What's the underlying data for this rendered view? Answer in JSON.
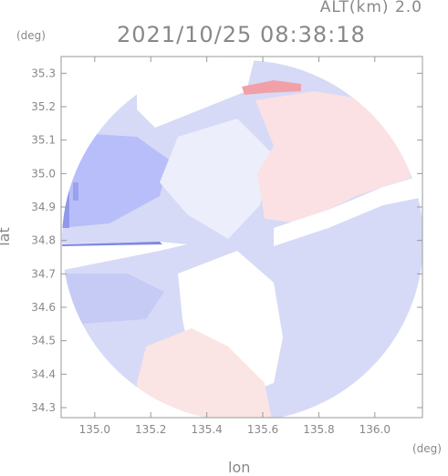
{
  "header": {
    "altitude": "ALT(km) 2.0",
    "datetime": "2021/10/25 08:38:18"
  },
  "axes": {
    "x_title": "lon",
    "y_title": "lat",
    "x_unit": "(deg)",
    "y_unit": "(deg)",
    "x_ticks": [
      "135.0",
      "135.2",
      "135.4",
      "135.6",
      "135.8",
      "136.0"
    ],
    "y_ticks": [
      "35.3",
      "35.2",
      "35.1",
      "35.0",
      "34.9",
      "34.8",
      "34.7",
      "34.6",
      "34.5",
      "34.4",
      "34.3"
    ]
  },
  "map_data": {
    "type": "radar-doppler-velocity",
    "xlim": [
      134.88,
      136.17
    ],
    "ylim": [
      34.27,
      35.35
    ],
    "colors": {
      "approaching": "#d4d8f6",
      "approaching_strong": "#a8b0ee",
      "receding": "#fbe0e0",
      "neutral": "#ffffff",
      "frame": "#999999"
    }
  }
}
